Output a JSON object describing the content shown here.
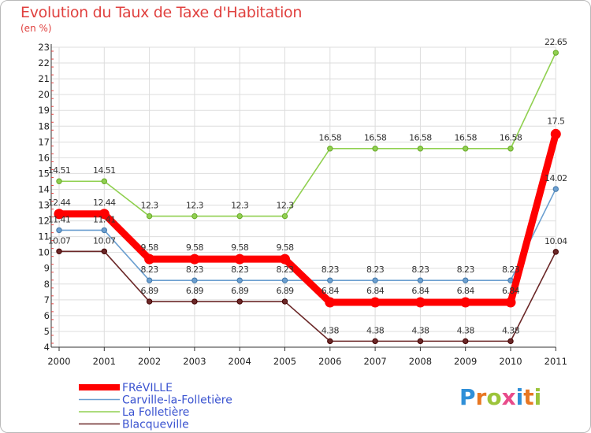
{
  "title": "Evolution du Taux de Taxe d'Habitation",
  "subtitle": "(en %)",
  "logo_text": "Proxiti",
  "colors": {
    "axis": "#333333",
    "grid": "#dddddd",
    "axis_ticks_red": "#e0413f",
    "title": "#e0413f",
    "legend_text": "#3a53d0"
  },
  "chart_data": {
    "type": "line",
    "title": "Evolution du Taux de Taxe d'Habitation",
    "ylabel": "(en %)",
    "xlabel": "",
    "x": [
      "2000",
      "2001",
      "2002",
      "2003",
      "2004",
      "2005",
      "2006",
      "2007",
      "2008",
      "2009",
      "2010",
      "2011"
    ],
    "ylim": [
      4,
      23
    ],
    "yticks": [
      4,
      5,
      6,
      7,
      8,
      9,
      10,
      11,
      12,
      13,
      14,
      15,
      16,
      17,
      18,
      19,
      20,
      21,
      22,
      23
    ],
    "grid": true,
    "legend_position": "bottom-left",
    "series": [
      {
        "name": "FRéVILLE",
        "color": "#ff0000",
        "stroke": 9,
        "marker": 6.5,
        "values": [
          12.44,
          12.44,
          9.58,
          9.58,
          9.58,
          9.58,
          6.84,
          6.84,
          6.84,
          6.84,
          6.84,
          17.5
        ],
        "labels": [
          "12.44",
          "12.44",
          "9.58",
          "9.58",
          "9.58",
          "9.58",
          "6.84",
          "6.84",
          "6.84",
          "6.84",
          "6.84",
          "17.5"
        ]
      },
      {
        "name": "Carville-la-Folletière",
        "color": "#6b9fd0",
        "stroke": 1.6,
        "marker": 3.2,
        "values": [
          11.41,
          11.41,
          8.23,
          8.23,
          8.23,
          8.23,
          8.23,
          8.23,
          8.23,
          8.23,
          8.23,
          14.02
        ],
        "labels": [
          "11.41",
          "11.41",
          "8.23",
          "8.23",
          "8.23",
          "8.23",
          "8.23",
          "8.23",
          "8.23",
          "8.23",
          "8.23",
          "14.02"
        ]
      },
      {
        "name": "La Folletière",
        "color": "#90d050",
        "stroke": 1.6,
        "marker": 3.2,
        "values": [
          14.51,
          14.51,
          12.3,
          12.3,
          12.3,
          12.3,
          16.58,
          16.58,
          16.58,
          16.58,
          16.58,
          22.65
        ],
        "labels": [
          "14.51",
          "14.51",
          "12.3",
          "12.3",
          "12.3",
          "12.3",
          "16.58",
          "16.58",
          "16.58",
          "16.58",
          "16.58",
          "22.65"
        ]
      },
      {
        "name": "Blacqueville",
        "color": "#6b2828",
        "stroke": 1.6,
        "marker": 3.2,
        "values": [
          10.07,
          10.07,
          6.89,
          6.89,
          6.89,
          6.89,
          4.38,
          4.38,
          4.38,
          4.38,
          4.38,
          10.04
        ],
        "labels": [
          "10.07",
          "10.07",
          "6.89",
          "6.89",
          "6.89",
          "6.89",
          "4.38",
          "4.38",
          "4.38",
          "4.38",
          "4.38",
          "10.04"
        ]
      }
    ]
  }
}
